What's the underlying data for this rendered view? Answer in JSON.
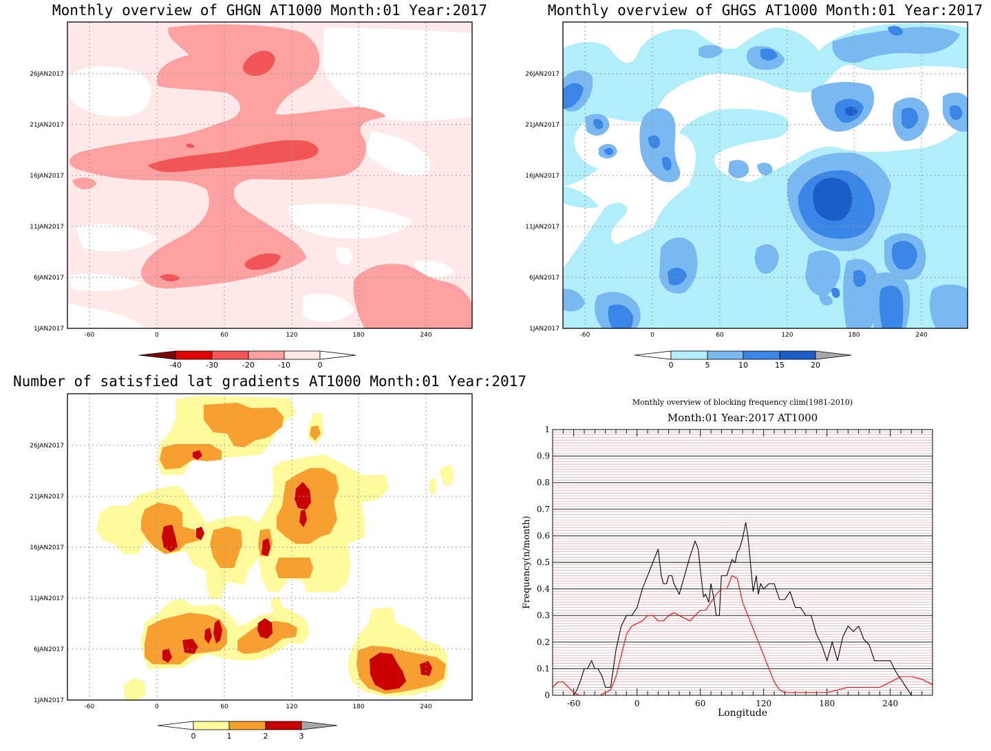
{
  "chart_data": [
    {
      "type": "heatmap",
      "title": "Monthly overview of GHGN AT1000 Month:01 Year:2017",
      "xlim": [
        -75,
        285
      ],
      "x_ticks": [
        "-60",
        "0",
        "60",
        "120",
        "180",
        "240"
      ],
      "y_ticks": [
        "1JAN2017",
        "6JAN2017",
        "11JAN2017",
        "16JAN2017",
        "21JAN2017",
        "26JAN2017"
      ],
      "colorbar": {
        "labels": [
          "-40",
          "-30",
          "-20",
          "-10",
          "0"
        ],
        "colors": [
          "#7a0a0a",
          "#e00000",
          "#f25555",
          "#fda0a0",
          "#ffe9e9",
          "#ffffff"
        ]
      },
      "palette": {
        "light": "#ffe9e9",
        "mid": "#fda0a0",
        "strong": "#f25555"
      }
    },
    {
      "type": "heatmap",
      "title": "Monthly overview of GHGS AT1000 Month:01 Year:2017",
      "xlim": [
        -75,
        285
      ],
      "x_ticks": [
        "-60",
        "0",
        "60",
        "120",
        "180",
        "240"
      ],
      "y_ticks": [
        "1JAN2017",
        "6JAN2017",
        "11JAN2017",
        "16JAN2017",
        "21JAN2017",
        "26JAN2017"
      ],
      "colorbar": {
        "labels": [
          "0",
          "5",
          "10",
          "15",
          "20"
        ],
        "colors": [
          "#ffffff",
          "#b0eefa",
          "#7ab8f2",
          "#3a86e6",
          "#1c5ec8",
          "#a8a8a8"
        ]
      },
      "palette": {
        "light": "#b0eefa",
        "mid": "#7ab8f2",
        "strong": "#3a86e6",
        "max": "#1c5ec8"
      }
    },
    {
      "type": "heatmap",
      "title": "Number of satisfied lat gradients AT1000 Month:01 Year:2017",
      "xlim": [
        -75,
        285
      ],
      "x_ticks": [
        "-60",
        "0",
        "60",
        "120",
        "180",
        "240"
      ],
      "y_ticks": [
        "1JAN2017",
        "6JAN2017",
        "11JAN2017",
        "16JAN2017",
        "21JAN2017",
        "26JAN2017"
      ],
      "colorbar": {
        "labels": [
          "0",
          "1",
          "2",
          "3"
        ],
        "colors": [
          "#ffffff",
          "#fffb9c",
          "#f7a030",
          "#c80000",
          "#a8a8a8"
        ]
      },
      "palette": {
        "one": "#fffb9c",
        "two": "#f7a030",
        "three": "#c80000"
      }
    },
    {
      "type": "line",
      "title": "Monthly overview of blocking frequency clim(1981-2010)",
      "subtitle": "Month:01 Year:2017  AT1000",
      "xlabel": "Longitude",
      "ylabel": "Frequency(n/month)",
      "xlim": [
        -80,
        280
      ],
      "ylim": [
        0,
        1
      ],
      "x_ticks": [
        "-60",
        "0",
        "60",
        "120",
        "180",
        "240"
      ],
      "y_ticks": [
        "0",
        "0.1",
        "0.2",
        "0.3",
        "0.4",
        "0.5",
        "0.6",
        "0.7",
        "0.8",
        "0.9",
        "1"
      ],
      "grid": true,
      "series": [
        {
          "color": "#000000",
          "x": [
            -80,
            -60,
            -57,
            -54,
            -50,
            -47,
            -43,
            -40,
            -37,
            -33,
            -30,
            -25,
            -20,
            -15,
            -10,
            -5,
            0,
            5,
            10,
            15,
            20,
            23,
            25,
            28,
            30,
            33,
            35,
            40,
            45,
            50,
            55,
            58,
            60,
            63,
            65,
            68,
            70,
            73,
            75,
            78,
            80,
            85,
            90,
            93,
            95,
            97,
            100,
            103,
            105,
            107,
            110,
            113,
            115,
            117,
            120,
            125,
            130,
            135,
            140,
            145,
            150,
            155,
            160,
            165,
            170,
            175,
            180,
            185,
            190,
            195,
            200,
            205,
            210,
            215,
            220,
            225,
            230,
            240,
            245,
            250,
            255,
            260,
            265,
            280
          ],
          "y": [
            0,
            0,
            0.02,
            0.05,
            0.1,
            0.1,
            0.13,
            0.1,
            0.1,
            0.07,
            0.03,
            0.03,
            0.17,
            0.26,
            0.3,
            0.3,
            0.33,
            0.4,
            0.45,
            0.5,
            0.55,
            0.45,
            0.42,
            0.42,
            0.45,
            0.45,
            0.42,
            0.38,
            0.45,
            0.52,
            0.58,
            0.55,
            0.47,
            0.37,
            0.38,
            0.35,
            0.42,
            0.36,
            0.3,
            0.3,
            0.45,
            0.45,
            0.51,
            0.5,
            0.54,
            0.55,
            0.59,
            0.65,
            0.6,
            0.52,
            0.39,
            0.45,
            0.38,
            0.42,
            0.4,
            0.42,
            0.42,
            0.36,
            0.36,
            0.39,
            0.33,
            0.33,
            0.3,
            0.3,
            0.23,
            0.19,
            0.13,
            0.2,
            0.13,
            0.22,
            0.26,
            0.24,
            0.26,
            0.21,
            0.19,
            0.13,
            0.13,
            0.13,
            0.09,
            0.06,
            0.03,
            0.0,
            0,
            0
          ]
        },
        {
          "color": "#ff0000",
          "x": [
            -80,
            -75,
            -70,
            -65,
            -60,
            -55,
            -50,
            -45,
            -40,
            -35,
            -30,
            -25,
            -20,
            -15,
            -10,
            -5,
            0,
            5,
            10,
            15,
            20,
            25,
            30,
            35,
            40,
            45,
            50,
            55,
            60,
            65,
            70,
            75,
            80,
            85,
            90,
            95,
            100,
            105,
            110,
            115,
            120,
            125,
            130,
            135,
            140,
            150,
            160,
            170,
            180,
            190,
            200,
            210,
            220,
            230,
            240,
            250,
            260,
            270,
            275,
            280
          ],
          "y": [
            0.03,
            0.05,
            0.05,
            0.03,
            0.01,
            0.0,
            0.0,
            0.0,
            0.0,
            0.0,
            0.01,
            0.02,
            0.07,
            0.15,
            0.23,
            0.26,
            0.27,
            0.28,
            0.3,
            0.3,
            0.28,
            0.28,
            0.3,
            0.31,
            0.3,
            0.29,
            0.28,
            0.3,
            0.32,
            0.32,
            0.35,
            0.38,
            0.4,
            0.4,
            0.45,
            0.44,
            0.35,
            0.3,
            0.25,
            0.2,
            0.15,
            0.1,
            0.05,
            0.02,
            0.01,
            0.01,
            0.01,
            0.01,
            0.01,
            0.02,
            0.03,
            0.03,
            0.03,
            0.03,
            0.05,
            0.07,
            0.07,
            0.06,
            0.05,
            0.04
          ]
        }
      ]
    }
  ]
}
